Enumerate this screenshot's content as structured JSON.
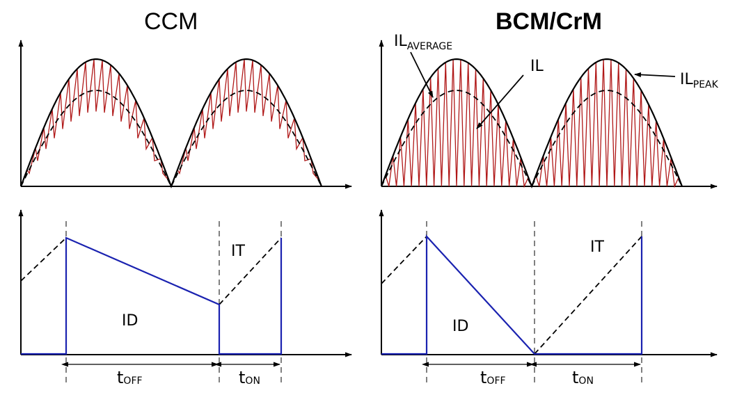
{
  "titles": {
    "ccm": "CCM",
    "bcm": "BCM/CrM"
  },
  "labels": {
    "il_average_main": "IL",
    "il_average_sub": "AVERAGE",
    "il": "IL",
    "il_peak_main": "IL",
    "il_peak_sub": "PEAK",
    "it_ccm": "IT",
    "id_ccm": "ID",
    "it_bcm": "IT",
    "id_bcm": "ID",
    "toff_ccm_main": "t",
    "toff_ccm_sub": "OFF",
    "ton_ccm_main": "t",
    "ton_ccm_sub": "ON",
    "toff_bcm_main": "t",
    "toff_bcm_sub": "OFF",
    "ton_bcm_main": "t",
    "ton_bcm_sub": "ON"
  },
  "colors": {
    "envelope": "#000000",
    "ripple": "#b01818",
    "diode_current": "#1a22b0",
    "dashed": "#000000"
  }
}
